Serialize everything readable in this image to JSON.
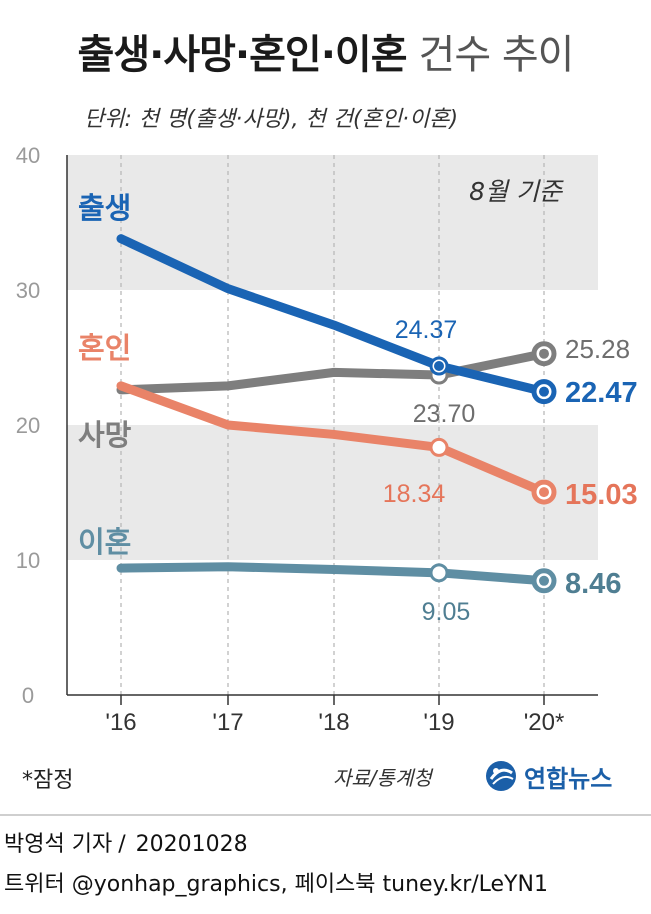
{
  "header": {
    "title_bold": "출생·사망·혼인·이혼",
    "title_light": "건수 추이",
    "unit": "단위: 천 명(출생·사망), 천 건(혼인·이혼)"
  },
  "footer": {
    "footnote": "*잠정",
    "source": "자료/통계청",
    "logo_text": "연합뉴스",
    "byline": "박영석 기자",
    "date": "20201028",
    "social": "트위터 @yonhap_graphics, 페이스북 tuney.kr/LeYN1"
  },
  "chart_data": {
    "type": "line",
    "annotation": "8월 기준",
    "categories": [
      "'16",
      "'17",
      "'18",
      "'19",
      "'20*"
    ],
    "ylim": [
      0,
      40
    ],
    "yticks": [
      0,
      10,
      20,
      30,
      40
    ],
    "series": [
      {
        "name": "출생",
        "color": "#1a64b4",
        "label_color": "#1a64b4",
        "values": [
          33.8,
          30.1,
          27.4,
          24.37,
          22.47
        ],
        "labels": [
          "",
          "",
          "",
          "24.37",
          "22.47"
        ]
      },
      {
        "name": "사망",
        "color": "#7e7e7e",
        "label_color": "#6e6e6e",
        "values": [
          22.6,
          22.9,
          23.9,
          23.7,
          25.28
        ],
        "labels": [
          "",
          "",
          "",
          "23.70",
          "25.28"
        ]
      },
      {
        "name": "혼인",
        "color": "#e98368",
        "label_color": "#e5755a",
        "values": [
          22.9,
          20.0,
          19.3,
          18.34,
          15.03
        ],
        "labels": [
          "",
          "",
          "",
          "18.34",
          "15.03"
        ]
      },
      {
        "name": "이혼",
        "color": "#5f8ea3",
        "label_color": "#4f7e92",
        "values": [
          9.4,
          9.5,
          9.3,
          9.05,
          8.46
        ],
        "labels": [
          "",
          "",
          "",
          "9.05",
          "8.46"
        ]
      }
    ]
  }
}
